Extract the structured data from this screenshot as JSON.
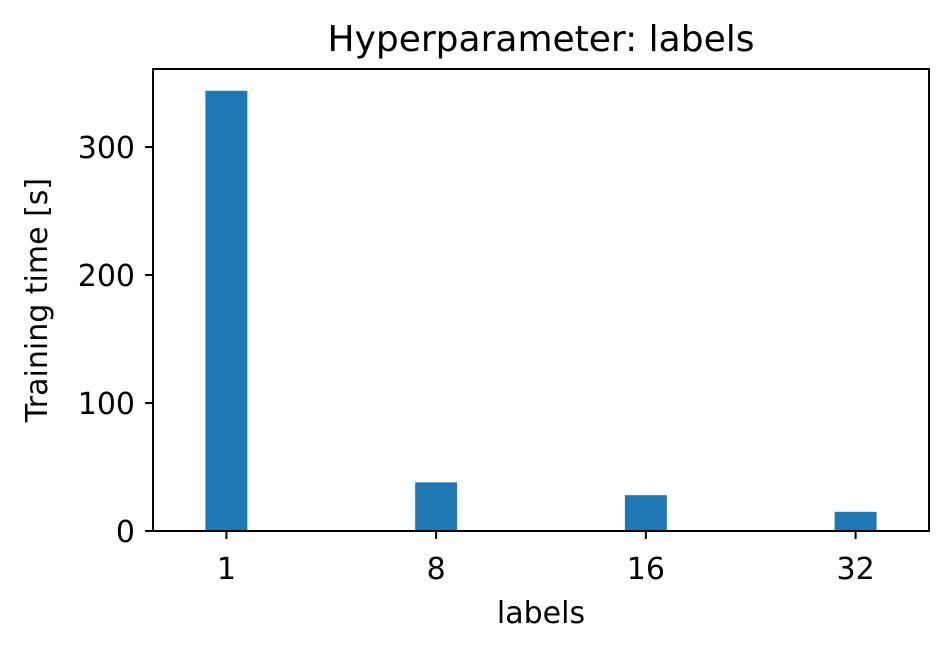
{
  "chart_data": {
    "type": "bar",
    "title": "Hyperparameter: labels",
    "xlabel": "labels",
    "ylabel": "Training time [s]",
    "categories": [
      "1",
      "8",
      "16",
      "32"
    ],
    "values": [
      344,
      38,
      28,
      15
    ],
    "ylim": [
      0,
      361
    ],
    "yticks": [
      0,
      100,
      200,
      300
    ],
    "grid": false,
    "bar_color": "#1f77b4"
  }
}
